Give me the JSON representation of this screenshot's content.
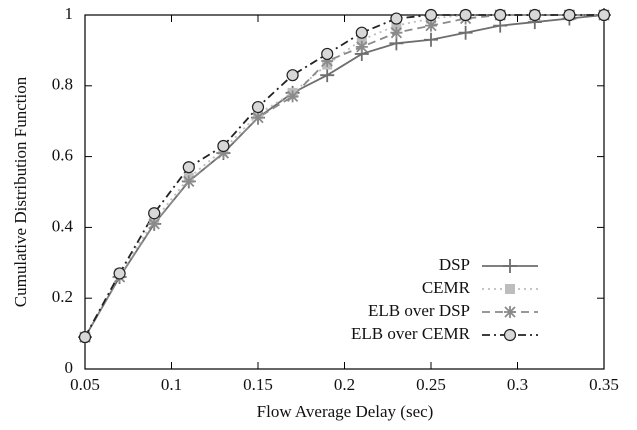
{
  "chart_data": {
    "type": "line",
    "x_label": "Flow Average Delay (sec)",
    "y_label": "Cumulative Distribution Function",
    "x": [
      0.05,
      0.07,
      0.09,
      0.11,
      0.13,
      0.15,
      0.17,
      0.19,
      0.21,
      0.23,
      0.25,
      0.27,
      0.29,
      0.31,
      0.33,
      0.35
    ],
    "series": [
      {
        "name": "DSP",
        "color": "#6e6e6e",
        "dash": "solid",
        "marker": "plus",
        "values": [
          0.09,
          0.26,
          0.41,
          0.53,
          0.61,
          0.71,
          0.78,
          0.83,
          0.89,
          0.92,
          0.93,
          0.95,
          0.97,
          0.98,
          0.99,
          1.0
        ]
      },
      {
        "name": "CEMR",
        "color": "#bdbdbd",
        "dash": "dotted",
        "marker": "square",
        "values": [
          0.09,
          0.27,
          0.42,
          0.54,
          0.62,
          0.72,
          0.78,
          0.86,
          0.93,
          0.97,
          0.99,
          1.0,
          1.0,
          1.0,
          1.0,
          1.0
        ]
      },
      {
        "name": "ELB over DSP",
        "color": "#8a8a8a",
        "dash": "dashed",
        "marker": "star",
        "values": [
          0.09,
          0.26,
          0.41,
          0.53,
          0.61,
          0.71,
          0.77,
          0.87,
          0.91,
          0.95,
          0.97,
          0.99,
          1.0,
          1.0,
          1.0,
          1.0
        ]
      },
      {
        "name": "ELB over CEMR",
        "color": "#222222",
        "dash": "dashdot",
        "marker": "circle",
        "values": [
          0.09,
          0.27,
          0.44,
          0.57,
          0.63,
          0.74,
          0.83,
          0.89,
          0.95,
          0.99,
          1.0,
          1.0,
          1.0,
          1.0,
          1.0,
          1.0
        ]
      }
    ],
    "xlim": [
      0.05,
      0.35
    ],
    "ylim": [
      0,
      1
    ],
    "xticks": [
      0.05,
      0.1,
      0.15,
      0.2,
      0.25,
      0.3,
      0.35
    ],
    "yticks": [
      0,
      0.2,
      0.4,
      0.6,
      0.8,
      1
    ],
    "legend": "lower right",
    "grid": false
  }
}
